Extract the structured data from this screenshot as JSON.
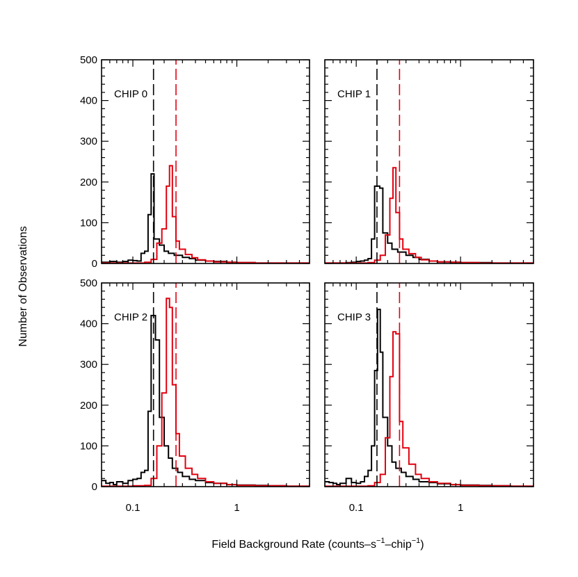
{
  "chart_data": {
    "type": "histogram",
    "xlabel": {
      "main": "Field Background Rate (counts–s",
      "sup1": "−1",
      "mid": "–chip",
      "sup2": "−1",
      "end": ")"
    },
    "ylabel": "Number of Observations",
    "x_scale": "log",
    "xlim": [
      0.05,
      5
    ],
    "ylim": [
      0,
      500
    ],
    "x_ticks": [
      {
        "value": 0.1,
        "label": "0.1"
      },
      {
        "value": 1,
        "label": "1"
      }
    ],
    "y_ticks": [
      {
        "value": 0,
        "label": "0"
      },
      {
        "value": 100,
        "label": "100"
      },
      {
        "value": 200,
        "label": "200"
      },
      {
        "value": 300,
        "label": "300"
      },
      {
        "value": 400,
        "label": "400"
      },
      {
        "value": 500,
        "label": "500"
      }
    ],
    "series_colors": {
      "black": "#000000",
      "red": "#e0000f"
    },
    "panels": [
      {
        "label": "CHIP 0",
        "black_vline": 0.158,
        "red_vline": 0.26,
        "black": [
          [
            0.05,
            3
          ],
          [
            0.06,
            5
          ],
          [
            0.07,
            3
          ],
          [
            0.08,
            5
          ],
          [
            0.09,
            8
          ],
          [
            0.1,
            7
          ],
          [
            0.11,
            6
          ],
          [
            0.12,
            25
          ],
          [
            0.13,
            30
          ],
          [
            0.14,
            120
          ],
          [
            0.15,
            220
          ],
          [
            0.16,
            60
          ],
          [
            0.18,
            45
          ],
          [
            0.2,
            30
          ],
          [
            0.22,
            25
          ],
          [
            0.25,
            20
          ],
          [
            0.3,
            15
          ],
          [
            0.35,
            12
          ],
          [
            0.4,
            8
          ],
          [
            0.5,
            6
          ],
          [
            0.6,
            5
          ],
          [
            0.8,
            3
          ],
          [
            1,
            2
          ],
          [
            1.5,
            1
          ],
          [
            2,
            1
          ],
          [
            3,
            1
          ],
          [
            5,
            1
          ]
        ],
        "red": [
          [
            0.05,
            1
          ],
          [
            0.1,
            1
          ],
          [
            0.13,
            3
          ],
          [
            0.15,
            10
          ],
          [
            0.17,
            50
          ],
          [
            0.19,
            85
          ],
          [
            0.21,
            190
          ],
          [
            0.225,
            240
          ],
          [
            0.24,
            115
          ],
          [
            0.26,
            55
          ],
          [
            0.28,
            35
          ],
          [
            0.32,
            22
          ],
          [
            0.37,
            14
          ],
          [
            0.42,
            9
          ],
          [
            0.5,
            6
          ],
          [
            0.6,
            4
          ],
          [
            0.8,
            3
          ],
          [
            1,
            2
          ],
          [
            1.5,
            1
          ],
          [
            2,
            1
          ],
          [
            3,
            1
          ],
          [
            5,
            1
          ]
        ]
      },
      {
        "label": "CHIP 1",
        "black_vline": 0.158,
        "red_vline": 0.26,
        "black": [
          [
            0.05,
            1
          ],
          [
            0.06,
            1
          ],
          [
            0.07,
            1
          ],
          [
            0.08,
            2
          ],
          [
            0.09,
            3
          ],
          [
            0.1,
            5
          ],
          [
            0.11,
            6
          ],
          [
            0.12,
            8
          ],
          [
            0.13,
            12
          ],
          [
            0.14,
            60
          ],
          [
            0.15,
            190
          ],
          [
            0.168,
            185
          ],
          [
            0.18,
            75
          ],
          [
            0.2,
            50
          ],
          [
            0.22,
            35
          ],
          [
            0.25,
            28
          ],
          [
            0.3,
            20
          ],
          [
            0.35,
            15
          ],
          [
            0.4,
            10
          ],
          [
            0.5,
            6
          ],
          [
            0.6,
            4
          ],
          [
            0.8,
            3
          ],
          [
            1,
            2
          ],
          [
            1.5,
            2
          ],
          [
            2,
            1
          ],
          [
            3,
            1
          ],
          [
            5,
            1
          ]
        ],
        "red": [
          [
            0.05,
            1
          ],
          [
            0.1,
            1
          ],
          [
            0.13,
            2
          ],
          [
            0.15,
            8
          ],
          [
            0.17,
            20
          ],
          [
            0.19,
            70
          ],
          [
            0.21,
            160
          ],
          [
            0.225,
            235
          ],
          [
            0.24,
            125
          ],
          [
            0.26,
            60
          ],
          [
            0.28,
            35
          ],
          [
            0.32,
            24
          ],
          [
            0.37,
            15
          ],
          [
            0.42,
            9
          ],
          [
            0.5,
            6
          ],
          [
            0.6,
            4
          ],
          [
            0.8,
            3
          ],
          [
            1,
            2
          ],
          [
            1.5,
            1
          ],
          [
            2,
            1
          ],
          [
            3,
            1
          ],
          [
            5,
            1
          ]
        ]
      },
      {
        "label": "CHIP 2",
        "black_vline": 0.158,
        "red_vline": 0.26,
        "black": [
          [
            0.05,
            15
          ],
          [
            0.055,
            8
          ],
          [
            0.06,
            10
          ],
          [
            0.065,
            5
          ],
          [
            0.07,
            12
          ],
          [
            0.08,
            8
          ],
          [
            0.09,
            15
          ],
          [
            0.1,
            18
          ],
          [
            0.11,
            20
          ],
          [
            0.12,
            35
          ],
          [
            0.13,
            40
          ],
          [
            0.14,
            185
          ],
          [
            0.15,
            420
          ],
          [
            0.165,
            360
          ],
          [
            0.18,
            170
          ],
          [
            0.2,
            100
          ],
          [
            0.22,
            70
          ],
          [
            0.24,
            45
          ],
          [
            0.27,
            35
          ],
          [
            0.3,
            25
          ],
          [
            0.35,
            18
          ],
          [
            0.4,
            15
          ],
          [
            0.5,
            10
          ],
          [
            0.6,
            8
          ],
          [
            0.8,
            5
          ],
          [
            1,
            4
          ],
          [
            1.5,
            3
          ],
          [
            2,
            2
          ],
          [
            3,
            1
          ],
          [
            5,
            1
          ]
        ],
        "red": [
          [
            0.05,
            1
          ],
          [
            0.1,
            2
          ],
          [
            0.13,
            3
          ],
          [
            0.15,
            20
          ],
          [
            0.17,
            100
          ],
          [
            0.19,
            230
          ],
          [
            0.21,
            462
          ],
          [
            0.225,
            440
          ],
          [
            0.24,
            250
          ],
          [
            0.26,
            130
          ],
          [
            0.28,
            75
          ],
          [
            0.32,
            45
          ],
          [
            0.37,
            30
          ],
          [
            0.42,
            20
          ],
          [
            0.5,
            12
          ],
          [
            0.6,
            8
          ],
          [
            0.8,
            5
          ],
          [
            1,
            3
          ],
          [
            1.5,
            2
          ],
          [
            2,
            2
          ],
          [
            3,
            1
          ],
          [
            5,
            1
          ]
        ]
      },
      {
        "label": "CHIP 3",
        "black_vline": 0.158,
        "red_vline": 0.26,
        "black": [
          [
            0.05,
            12
          ],
          [
            0.055,
            10
          ],
          [
            0.06,
            8
          ],
          [
            0.065,
            5
          ],
          [
            0.07,
            8
          ],
          [
            0.08,
            20
          ],
          [
            0.09,
            10
          ],
          [
            0.1,
            8
          ],
          [
            0.11,
            12
          ],
          [
            0.12,
            25
          ],
          [
            0.13,
            40
          ],
          [
            0.14,
            100
          ],
          [
            0.15,
            285
          ],
          [
            0.16,
            435
          ],
          [
            0.17,
            330
          ],
          [
            0.18,
            170
          ],
          [
            0.2,
            100
          ],
          [
            0.22,
            60
          ],
          [
            0.24,
            45
          ],
          [
            0.27,
            35
          ],
          [
            0.3,
            25
          ],
          [
            0.35,
            18
          ],
          [
            0.4,
            12
          ],
          [
            0.5,
            10
          ],
          [
            0.6,
            7
          ],
          [
            0.8,
            5
          ],
          [
            1,
            4
          ],
          [
            1.5,
            3
          ],
          [
            2,
            2
          ],
          [
            3,
            1
          ],
          [
            5,
            1
          ]
        ],
        "red": [
          [
            0.05,
            1
          ],
          [
            0.1,
            1
          ],
          [
            0.13,
            2
          ],
          [
            0.15,
            10
          ],
          [
            0.17,
            30
          ],
          [
            0.19,
            120
          ],
          [
            0.21,
            270
          ],
          [
            0.225,
            380
          ],
          [
            0.24,
            375
          ],
          [
            0.26,
            160
          ],
          [
            0.28,
            95
          ],
          [
            0.32,
            55
          ],
          [
            0.37,
            30
          ],
          [
            0.42,
            20
          ],
          [
            0.5,
            12
          ],
          [
            0.6,
            8
          ],
          [
            0.8,
            5
          ],
          [
            1,
            3
          ],
          [
            1.5,
            2
          ],
          [
            2,
            2
          ],
          [
            3,
            1
          ],
          [
            5,
            1
          ]
        ]
      }
    ]
  }
}
